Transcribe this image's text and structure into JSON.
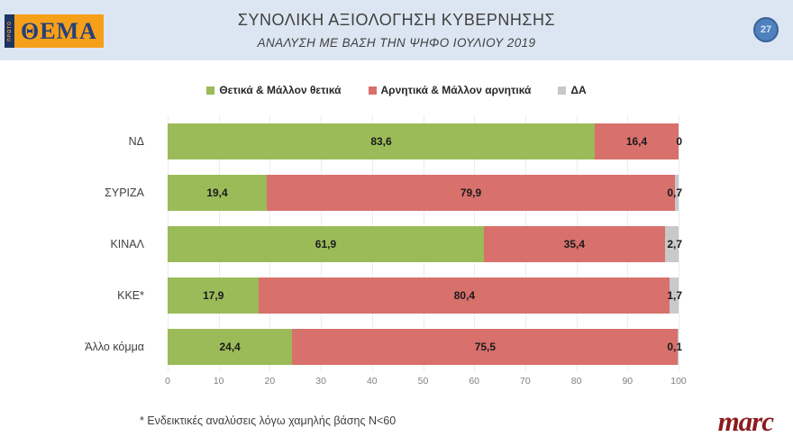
{
  "header": {
    "logo": {
      "vertical_text": "ΠΡΩΤΟ",
      "main_text": "ΘΕΜΑ",
      "bg_color": "#f6a01a",
      "text_color": "#24407a"
    },
    "title": "ΣΥΝΟΛΙΚΗ ΑΞΙΟΛΟΓΗΣΗ ΚΥΒΕΡΝΗΣΗΣ",
    "subtitle": "ΑΝΑΛΥΣΗ ΜΕ ΒΑΣΗ ΤΗΝ ΨΗΦΟ ΙΟΥΛΙΟΥ 2019",
    "page_number": "27"
  },
  "chart_data": {
    "type": "bar",
    "orientation": "horizontal-stacked",
    "title": "ΣΥΝΟΛΙΚΗ ΑΞΙΟΛΟΓΗΣΗ ΚΥΒΕΡΝΗΣΗΣ",
    "subtitle": "ΑΝΑΛΥΣΗ ΜΕ ΒΑΣΗ ΤΗΝ ΨΗΦΟ ΙΟΥΛΙΟΥ 2019",
    "categories": [
      "ΝΔ",
      "ΣΥΡΙΖΑ",
      "ΚΙΝΑΛ",
      "ΚΚΕ*",
      "Άλλο κόμμα"
    ],
    "series": [
      {
        "name": "Θετικά & Μάλλον θετικά",
        "color": "#9bbb59",
        "values": [
          83.6,
          19.4,
          61.9,
          17.9,
          24.4
        ]
      },
      {
        "name": "Αρνητικά & Μάλλον αρνητικά",
        "color": "#d8706c",
        "values": [
          16.4,
          79.9,
          35.4,
          80.4,
          75.5
        ]
      },
      {
        "name": "ΔΑ",
        "color": "#c9c9c9",
        "values": [
          0,
          0.7,
          2.7,
          1.7,
          0.1
        ]
      }
    ],
    "value_labels": [
      [
        "83,6",
        "16,4",
        "0"
      ],
      [
        "19,4",
        "79,9",
        "0,7"
      ],
      [
        "61,9",
        "35,4",
        "2,7"
      ],
      [
        "17,9",
        "80,4",
        "1,7"
      ],
      [
        "24,4",
        "75,5",
        "0,1"
      ]
    ],
    "x_ticks": [
      "0",
      "10",
      "20",
      "30",
      "40",
      "50",
      "60",
      "70",
      "80",
      "90",
      "100"
    ],
    "xlim": [
      0,
      100
    ],
    "grid": true,
    "legend_position": "top"
  },
  "footer": {
    "footnote": "* Ενδεικτικές αναλύσεις λόγω χαμηλής βάσης Ν<60",
    "brand": "marc",
    "brand_color": "#8c1b1e"
  }
}
